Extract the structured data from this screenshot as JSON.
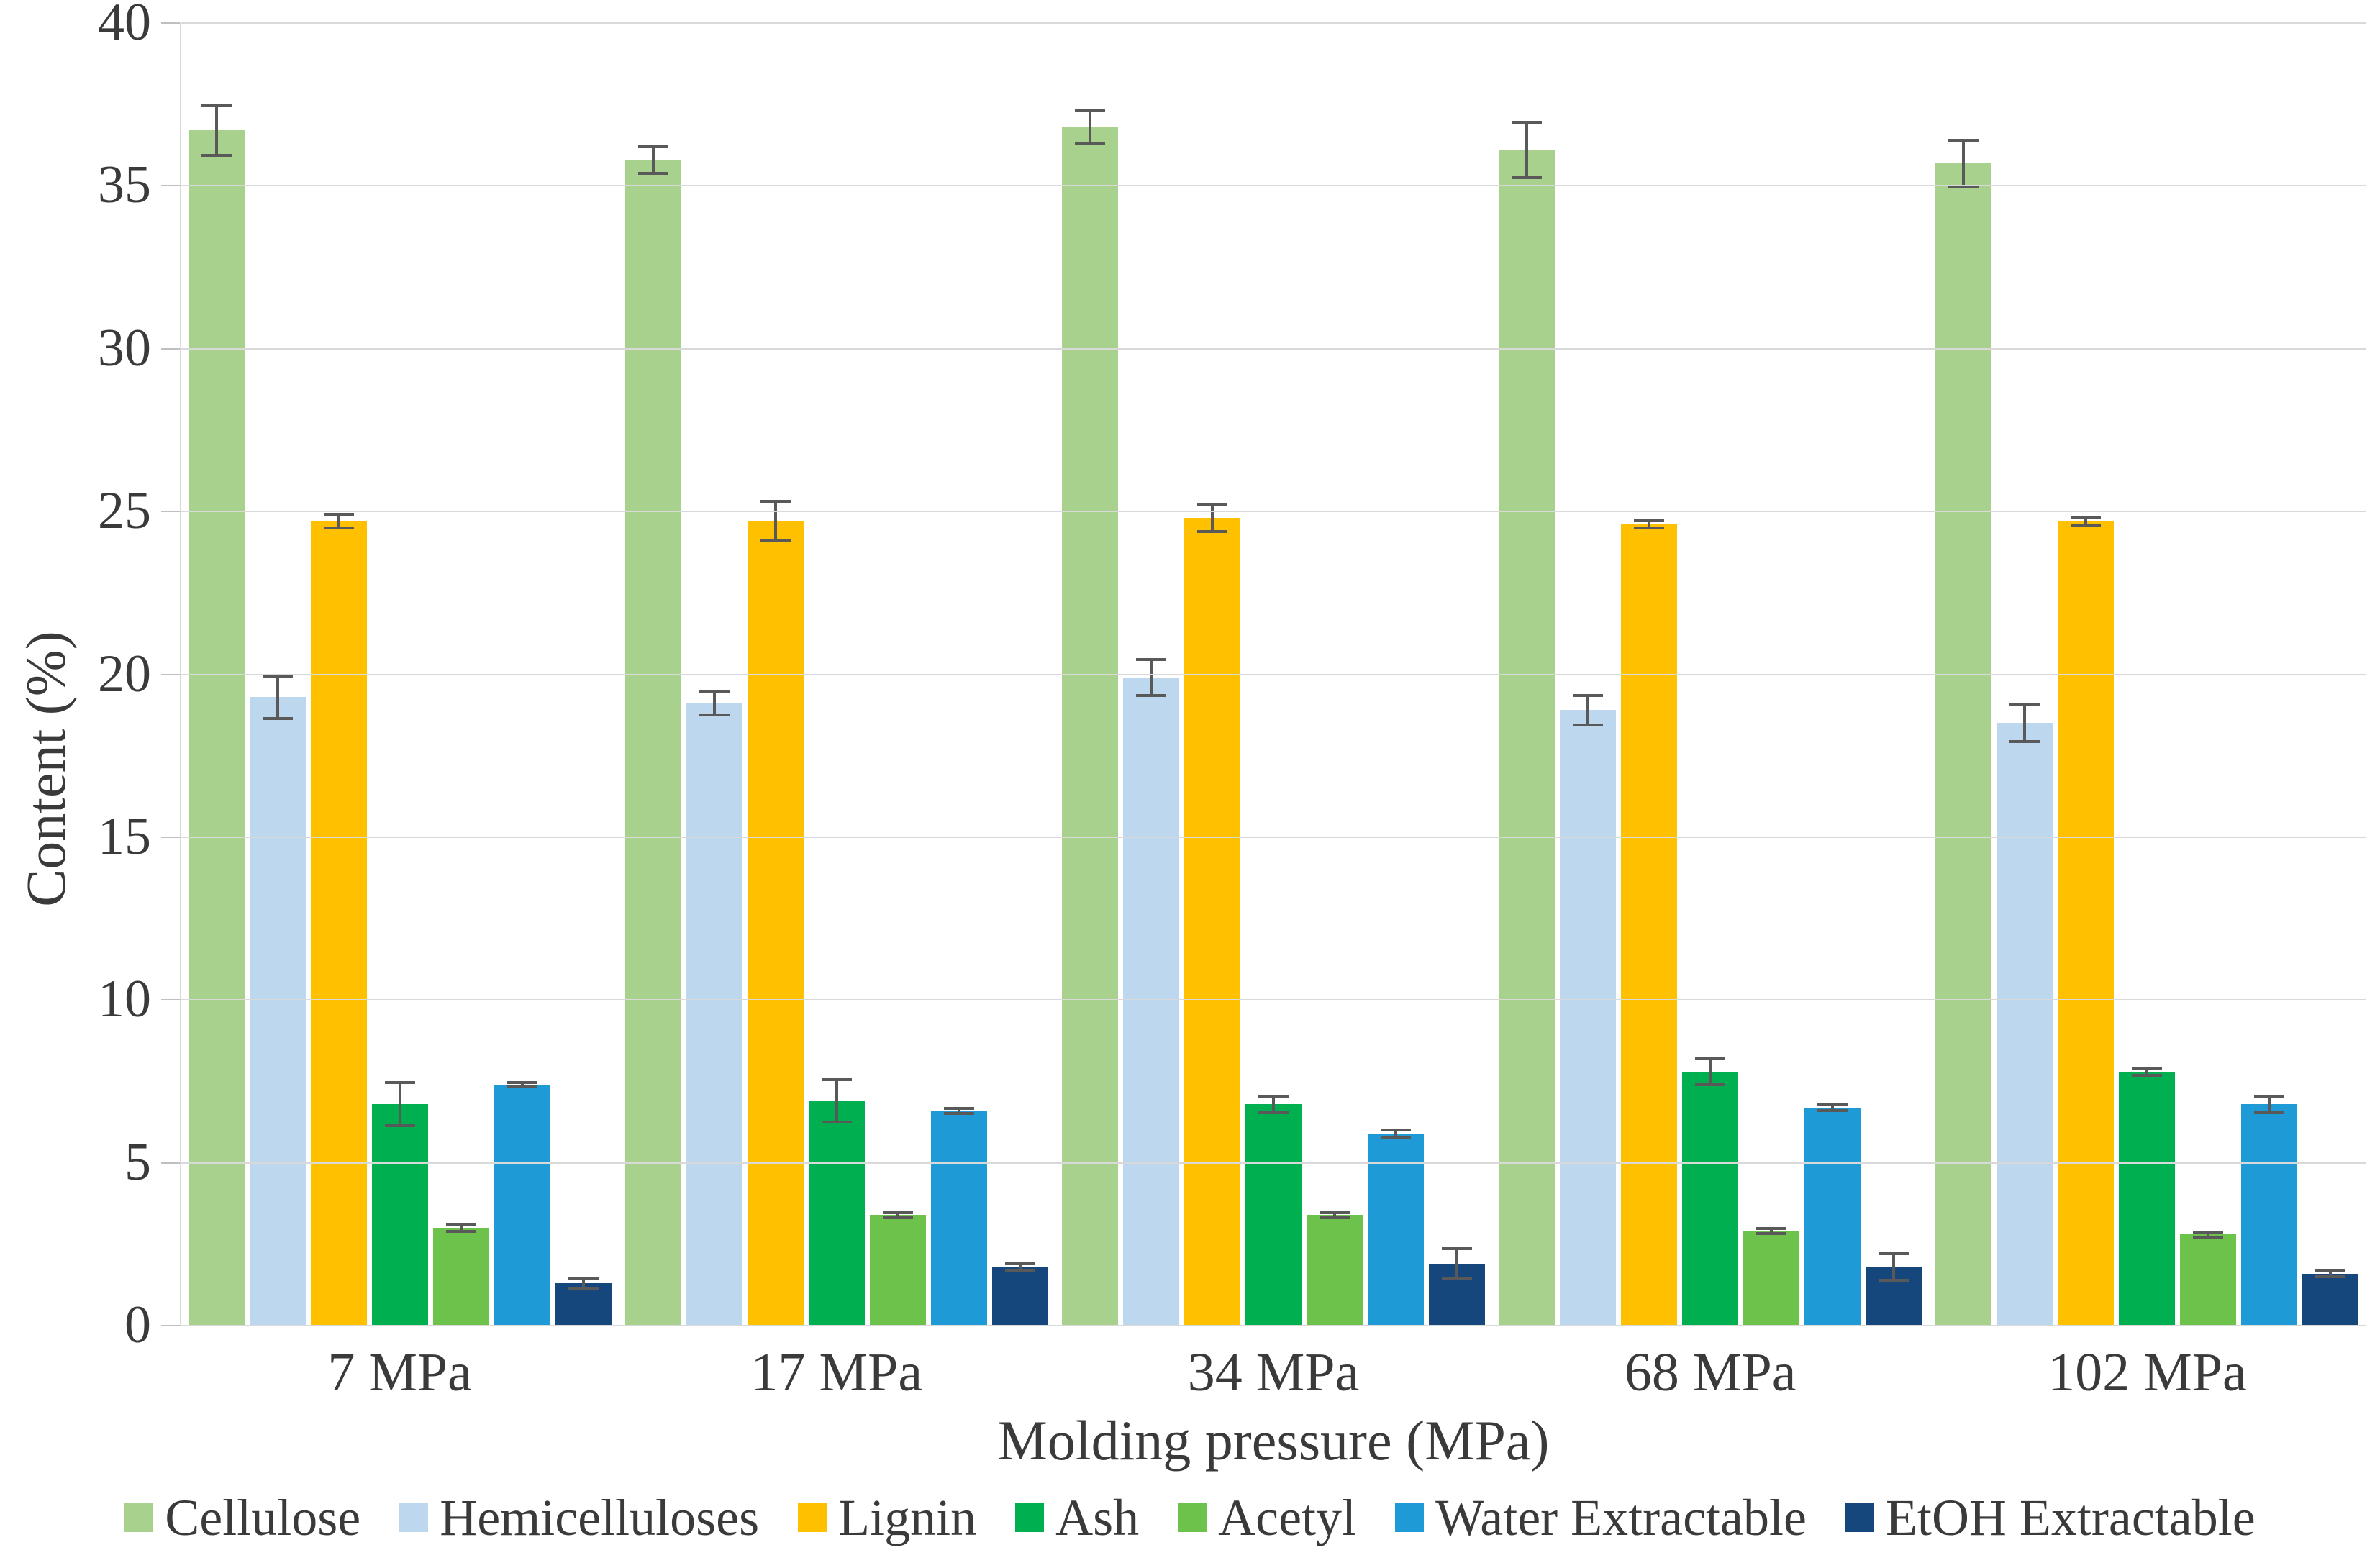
{
  "chart_data": {
    "type": "bar",
    "title": "",
    "xlabel": "Molding pressure (MPa)",
    "ylabel": "Content (%)",
    "categories": [
      "7 MPa",
      "17 MPa",
      "34 MPa",
      "68 MPa",
      "102 MPa"
    ],
    "series": [
      {
        "name": "Cellulose",
        "color": "#A9D18E",
        "values": [
          36.7,
          35.8,
          36.8,
          36.1,
          35.7
        ],
        "errors": [
          0.8,
          0.45,
          0.55,
          0.9,
          0.75
        ]
      },
      {
        "name": "Hemicelluloses",
        "color": "#BDD7EE",
        "values": [
          19.3,
          19.1,
          19.9,
          18.9,
          18.5
        ],
        "errors": [
          0.7,
          0.4,
          0.6,
          0.5,
          0.6
        ]
      },
      {
        "name": "Lignin",
        "color": "#FFC000",
        "values": [
          24.7,
          24.7,
          24.8,
          24.6,
          24.7
        ],
        "errors": [
          0.25,
          0.65,
          0.45,
          0.15,
          0.15
        ]
      },
      {
        "name": "Ash",
        "color": "#00B050",
        "values": [
          6.8,
          6.9,
          6.8,
          7.8,
          7.8
        ],
        "errors": [
          0.7,
          0.7,
          0.3,
          0.45,
          0.15
        ]
      },
      {
        "name": "Acetyl",
        "color": "#6DC24B",
        "values": [
          3.0,
          3.4,
          3.4,
          2.9,
          2.8
        ],
        "errors": [
          0.15,
          0.12,
          0.12,
          0.12,
          0.12
        ]
      },
      {
        "name": "Water Extractable",
        "color": "#1E9AD6",
        "values": [
          7.4,
          6.6,
          5.9,
          6.7,
          6.8
        ],
        "errors": [
          0.12,
          0.12,
          0.15,
          0.15,
          0.3
        ]
      },
      {
        "name": "EtOH Extractable",
        "color": "#15477D",
        "values": [
          1.3,
          1.8,
          1.9,
          1.8,
          1.6
        ],
        "errors": [
          0.2,
          0.15,
          0.5,
          0.45,
          0.15
        ]
      }
    ],
    "ylim": [
      0,
      40
    ],
    "ytick_step": 5,
    "yticks": [
      "0",
      "5",
      "10",
      "15",
      "20",
      "25",
      "30",
      "35",
      "40"
    ],
    "grid": "horizontal",
    "legend_position": "bottom",
    "colors": {
      "grid": "#D9D9D9",
      "axis": "#BFBFBF",
      "error_bar": "#595959",
      "text": "#3A3A3A",
      "background": "#FFFFFF"
    }
  }
}
